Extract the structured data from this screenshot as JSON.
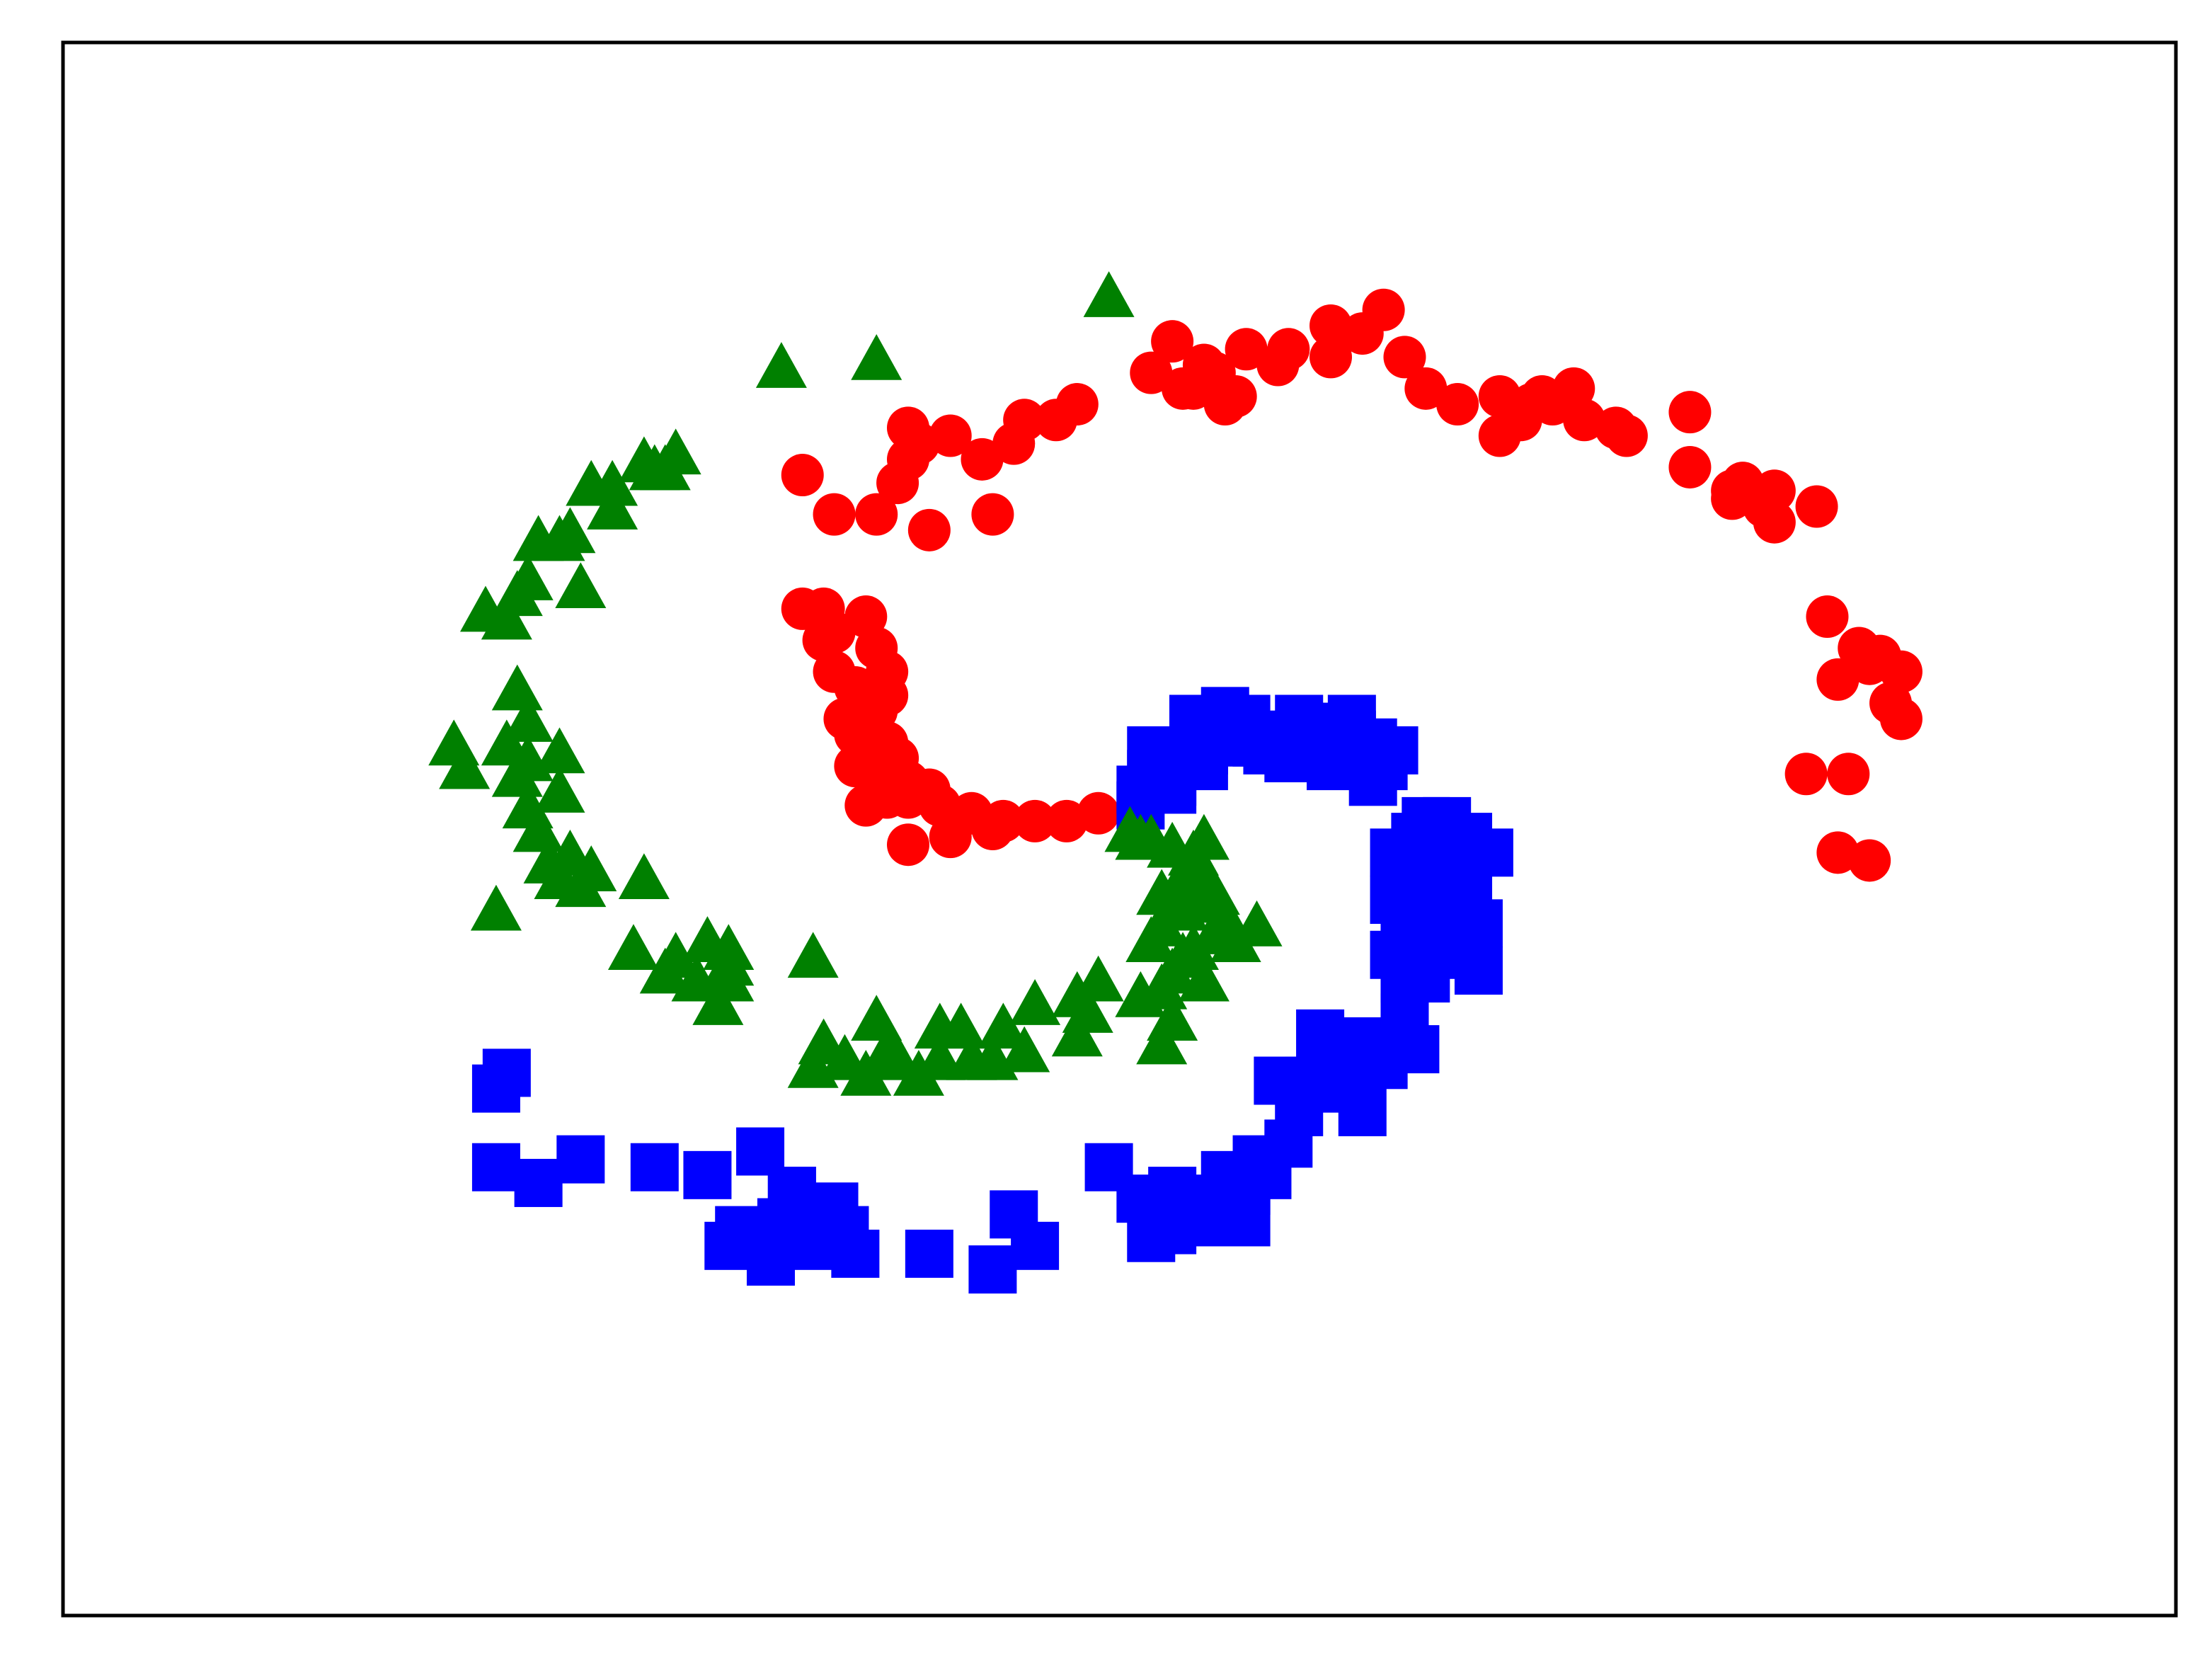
{
  "chart_data": {
    "type": "scatter",
    "title": "",
    "xlabel": "",
    "ylabel": "",
    "xlim": [
      -1.0,
      1.0
    ],
    "ylim": [
      -1.0,
      1.0
    ],
    "grid": false,
    "axes_ticks_visible": false,
    "legend": "none",
    "series": [
      {
        "marker": "circle",
        "color": "#ff0000",
        "points": [
          [
            -0.02,
            0.02
          ],
          [
            -0.05,
            0.01
          ],
          [
            -0.08,
            0.01
          ],
          [
            -0.11,
            0.01
          ],
          [
            -0.14,
            0.02
          ],
          [
            -0.17,
            0.03
          ],
          [
            -0.2,
            0.04
          ],
          [
            -0.2,
            0.06
          ],
          [
            -0.16,
            -0.01
          ],
          [
            -0.12,
            0.0
          ],
          [
            -0.23,
            0.06
          ],
          [
            -0.25,
            0.08
          ],
          [
            -0.24,
            0.11
          ],
          [
            -0.26,
            0.14
          ],
          [
            -0.25,
            0.18
          ],
          [
            -0.27,
            0.2
          ],
          [
            -0.22,
            0.2
          ],
          [
            -0.23,
            0.23
          ],
          [
            -0.27,
            0.25
          ],
          [
            -0.24,
            0.27
          ],
          [
            -0.28,
            0.28
          ],
          [
            -0.3,
            0.28
          ],
          [
            -0.22,
            0.11
          ],
          [
            -0.25,
            0.12
          ],
          [
            -0.23,
            0.15
          ],
          [
            -0.28,
            0.24
          ],
          [
            -0.21,
            0.09
          ],
          [
            -0.22,
            0.17
          ],
          [
            -0.2,
            -0.02
          ],
          [
            -0.24,
            0.03
          ],
          [
            -0.22,
            0.04
          ],
          [
            -0.18,
            0.05
          ],
          [
            -0.3,
            0.45
          ],
          [
            -0.27,
            0.4
          ],
          [
            -0.23,
            0.4
          ],
          [
            -0.18,
            0.38
          ],
          [
            -0.12,
            0.4
          ],
          [
            -0.13,
            0.47
          ],
          [
            -0.09,
            0.52
          ],
          [
            -0.04,
            0.54
          ],
          [
            -0.2,
            0.47
          ],
          [
            -0.19,
            0.49
          ],
          [
            -0.2,
            0.51
          ],
          [
            -0.16,
            0.5
          ],
          [
            -0.21,
            0.44
          ],
          [
            -0.1,
            0.49
          ],
          [
            -0.06,
            0.52
          ],
          [
            0.03,
            0.58
          ],
          [
            0.07,
            0.56
          ],
          [
            0.11,
            0.55
          ],
          [
            0.15,
            0.59
          ],
          [
            0.2,
            0.6
          ],
          [
            0.23,
            0.63
          ],
          [
            0.25,
            0.66
          ],
          [
            0.2,
            0.64
          ],
          [
            0.27,
            0.6
          ],
          [
            0.05,
            0.62
          ],
          [
            0.09,
            0.58
          ],
          [
            0.12,
            0.61
          ],
          [
            0.16,
            0.61
          ],
          [
            0.06,
            0.56
          ],
          [
            0.1,
            0.54
          ],
          [
            0.08,
            0.59
          ],
          [
            0.29,
            0.56
          ],
          [
            0.32,
            0.54
          ],
          [
            0.36,
            0.55
          ],
          [
            0.4,
            0.55
          ],
          [
            0.44,
            0.52
          ],
          [
            0.48,
            0.5
          ],
          [
            0.36,
            0.5
          ],
          [
            0.38,
            0.52
          ],
          [
            0.47,
            0.51
          ],
          [
            0.43,
            0.56
          ],
          [
            0.41,
            0.54
          ],
          [
            0.39,
            0.54
          ],
          [
            0.54,
            0.53
          ],
          [
            0.54,
            0.46
          ],
          [
            0.58,
            0.42
          ],
          [
            0.61,
            0.41
          ],
          [
            0.62,
            0.43
          ],
          [
            0.66,
            0.41
          ],
          [
            0.62,
            0.39
          ],
          [
            0.58,
            0.43
          ],
          [
            0.59,
            0.44
          ],
          [
            0.67,
            0.27
          ],
          [
            0.7,
            0.23
          ],
          [
            0.72,
            0.22
          ],
          [
            0.74,
            0.2
          ],
          [
            0.73,
            0.16
          ],
          [
            0.74,
            0.14
          ],
          [
            0.71,
            0.21
          ],
          [
            0.68,
            0.19
          ],
          [
            0.65,
            0.07
          ],
          [
            0.69,
            0.07
          ],
          [
            0.68,
            -0.03
          ],
          [
            0.71,
            -0.04
          ]
        ]
      },
      {
        "marker": "square",
        "color": "#0000ff",
        "points": [
          [
            0.02,
            0.03
          ],
          [
            0.05,
            0.06
          ],
          [
            0.08,
            0.1
          ],
          [
            0.11,
            0.12
          ],
          [
            0.07,
            0.14
          ],
          [
            0.1,
            0.15
          ],
          [
            0.13,
            0.11
          ],
          [
            0.16,
            0.12
          ],
          [
            0.19,
            0.13
          ],
          [
            0.16,
            0.09
          ],
          [
            0.2,
            0.08
          ],
          [
            0.24,
            0.06
          ],
          [
            0.24,
            0.11
          ],
          [
            0.22,
            0.12
          ],
          [
            0.17,
            0.14
          ],
          [
            0.26,
            0.1
          ],
          [
            0.21,
            0.1
          ],
          [
            0.19,
            0.1
          ],
          [
            0.14,
            0.1
          ],
          [
            0.1,
            0.11
          ],
          [
            0.08,
            0.08
          ],
          [
            0.05,
            0.09
          ],
          [
            0.03,
            0.1
          ],
          [
            0.03,
            0.07
          ],
          [
            0.02,
            0.05
          ],
          [
            0.05,
            0.05
          ],
          [
            0.12,
            0.14
          ],
          [
            0.22,
            0.14
          ],
          [
            0.25,
            0.08
          ],
          [
            0.29,
            0.01
          ],
          [
            0.32,
            -0.02
          ],
          [
            0.33,
            -0.06
          ],
          [
            0.3,
            -0.06
          ],
          [
            0.28,
            -0.04
          ],
          [
            0.26,
            -0.03
          ],
          [
            0.28,
            -0.01
          ],
          [
            0.31,
            0.01
          ],
          [
            0.33,
            -0.01
          ],
          [
            0.3,
            -0.1
          ],
          [
            0.27,
            -0.12
          ],
          [
            0.26,
            -0.09
          ],
          [
            0.29,
            -0.12
          ],
          [
            0.32,
            -0.11
          ],
          [
            0.31,
            -0.16
          ],
          [
            0.34,
            -0.18
          ],
          [
            0.29,
            -0.19
          ],
          [
            0.27,
            -0.19
          ],
          [
            0.26,
            -0.16
          ],
          [
            0.28,
            -0.15
          ],
          [
            0.31,
            -0.14
          ],
          [
            0.35,
            -0.03
          ],
          [
            0.34,
            -0.12
          ],
          [
            0.29,
            -0.08
          ],
          [
            0.27,
            -0.24
          ],
          [
            0.28,
            -0.28
          ],
          [
            0.25,
            -0.3
          ],
          [
            0.23,
            -0.27
          ],
          [
            0.19,
            -0.26
          ],
          [
            0.2,
            -0.3
          ],
          [
            0.18,
            -0.32
          ],
          [
            0.21,
            -0.33
          ],
          [
            0.23,
            -0.36
          ],
          [
            0.17,
            -0.36
          ],
          [
            0.15,
            -0.32
          ],
          [
            0.16,
            -0.4
          ],
          [
            0.14,
            -0.44
          ],
          [
            0.12,
            -0.46
          ],
          [
            0.11,
            -0.48
          ],
          [
            0.08,
            -0.5
          ],
          [
            0.05,
            -0.51
          ],
          [
            0.03,
            -0.52
          ],
          [
            0.06,
            -0.48
          ],
          [
            0.09,
            -0.47
          ],
          [
            0.1,
            -0.44
          ],
          [
            0.13,
            -0.42
          ],
          [
            0.12,
            -0.5
          ],
          [
            0.05,
            -0.46
          ],
          [
            -0.01,
            -0.43
          ],
          [
            0.02,
            -0.47
          ],
          [
            -0.08,
            -0.53
          ],
          [
            -0.1,
            -0.49
          ],
          [
            -0.12,
            -0.56
          ],
          [
            -0.18,
            -0.54
          ],
          [
            -0.26,
            -0.51
          ],
          [
            -0.25,
            -0.54
          ],
          [
            -0.29,
            -0.53
          ],
          [
            -0.31,
            -0.51
          ],
          [
            -0.27,
            -0.48
          ],
          [
            -0.28,
            -0.52
          ],
          [
            -0.33,
            -0.55
          ],
          [
            -0.37,
            -0.53
          ],
          [
            -0.36,
            -0.51
          ],
          [
            -0.32,
            -0.5
          ],
          [
            -0.31,
            -0.46
          ],
          [
            -0.31,
            -0.46
          ],
          [
            -0.34,
            -0.41
          ],
          [
            -0.39,
            -0.44
          ],
          [
            -0.44,
            -0.43
          ],
          [
            -0.51,
            -0.42
          ],
          [
            -0.55,
            -0.45
          ],
          [
            -0.59,
            -0.43
          ],
          [
            -0.58,
            -0.31
          ],
          [
            -0.59,
            -0.33
          ]
        ]
      },
      {
        "marker": "triangle",
        "color": "#008000",
        "points": [
          [
            0.01,
            0.0
          ],
          [
            0.03,
            -0.01
          ],
          [
            0.05,
            -0.02
          ],
          [
            0.07,
            -0.03
          ],
          [
            0.08,
            -0.06
          ],
          [
            0.07,
            -0.09
          ],
          [
            0.1,
            -0.11
          ],
          [
            0.09,
            -0.13
          ],
          [
            0.06,
            -0.1
          ],
          [
            0.04,
            -0.08
          ],
          [
            0.06,
            -0.06
          ],
          [
            0.08,
            -0.01
          ],
          [
            0.02,
            -0.01
          ],
          [
            0.13,
            -0.12
          ],
          [
            0.11,
            -0.14
          ],
          [
            0.06,
            -0.16
          ],
          [
            0.05,
            -0.18
          ],
          [
            0.08,
            -0.19
          ],
          [
            0.04,
            -0.2
          ],
          [
            0.05,
            -0.24
          ],
          [
            0.04,
            -0.27
          ],
          [
            0.02,
            -0.21
          ],
          [
            0.07,
            -0.15
          ],
          [
            0.09,
            -0.08
          ],
          [
            0.04,
            -0.12
          ],
          [
            0.03,
            -0.14
          ],
          [
            -0.02,
            -0.19
          ],
          [
            -0.03,
            -0.23
          ],
          [
            -0.04,
            -0.26
          ],
          [
            -0.04,
            -0.21
          ],
          [
            -0.08,
            -0.22
          ],
          [
            -0.11,
            -0.25
          ],
          [
            -0.09,
            -0.28
          ],
          [
            -0.12,
            -0.29
          ],
          [
            -0.14,
            -0.29
          ],
          [
            -0.17,
            -0.29
          ],
          [
            -0.15,
            -0.25
          ],
          [
            -0.17,
            -0.25
          ],
          [
            -0.19,
            -0.31
          ],
          [
            -0.21,
            -0.29
          ],
          [
            -0.24,
            -0.31
          ],
          [
            -0.26,
            -0.29
          ],
          [
            -0.28,
            -0.27
          ],
          [
            -0.22,
            -0.28
          ],
          [
            -0.29,
            -0.3
          ],
          [
            -0.23,
            -0.24
          ],
          [
            -0.29,
            -0.16
          ],
          [
            -0.37,
            -0.19
          ],
          [
            -0.38,
            -0.22
          ],
          [
            -0.37,
            -0.17
          ],
          [
            -0.4,
            -0.19
          ],
          [
            -0.42,
            -0.16
          ],
          [
            -0.43,
            -0.18
          ],
          [
            -0.46,
            -0.15
          ],
          [
            -0.37,
            -0.15
          ],
          [
            -0.39,
            -0.14
          ],
          [
            -0.45,
            -0.06
          ],
          [
            -0.51,
            -0.07
          ],
          [
            -0.53,
            -0.06
          ],
          [
            -0.54,
            -0.04
          ],
          [
            -0.5,
            -0.05
          ],
          [
            -0.52,
            -0.03
          ],
          [
            -0.59,
            -0.1
          ],
          [
            -0.55,
            0.0
          ],
          [
            -0.56,
            0.03
          ],
          [
            -0.53,
            0.05
          ],
          [
            -0.57,
            0.07
          ],
          [
            -0.58,
            0.11
          ],
          [
            -0.56,
            0.14
          ],
          [
            -0.57,
            0.18
          ],
          [
            -0.53,
            0.1
          ],
          [
            -0.56,
            0.09
          ],
          [
            -0.63,
            0.11
          ],
          [
            -0.62,
            0.08
          ],
          [
            -0.58,
            0.27
          ],
          [
            -0.57,
            0.3
          ],
          [
            -0.56,
            0.32
          ],
          [
            -0.51,
            0.31
          ],
          [
            -0.55,
            0.37
          ],
          [
            -0.52,
            0.38
          ],
          [
            -0.48,
            0.41
          ],
          [
            -0.48,
            0.44
          ],
          [
            -0.43,
            0.46
          ],
          [
            -0.42,
            0.48
          ],
          [
            -0.44,
            0.46
          ],
          [
            -0.45,
            0.47
          ],
          [
            -0.5,
            0.44
          ],
          [
            -0.6,
            0.28
          ],
          [
            -0.53,
            0.37
          ],
          [
            -0.32,
            0.59
          ],
          [
            -0.23,
            0.6
          ],
          [
            -0.01,
            0.68
          ]
        ]
      }
    ]
  }
}
